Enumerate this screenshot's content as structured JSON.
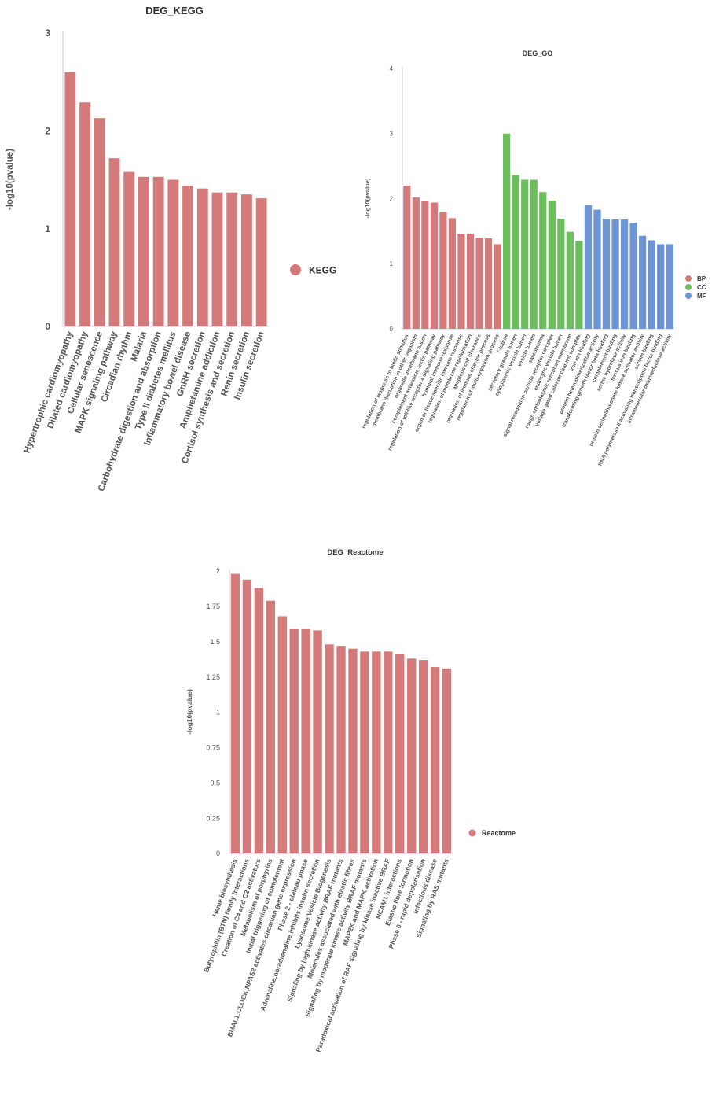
{
  "chart_data": [
    {
      "type": "bar",
      "title": "DEG_KEGG",
      "xlabel": "",
      "ylabel": "-log10(pvalue)",
      "ylim": [
        0,
        3
      ],
      "yticks": [
        "0",
        "1",
        "2",
        "3"
      ],
      "grid": false,
      "legend_position": "right",
      "series": [
        {
          "name": "KEGG",
          "color": "#d47a7a",
          "categories": [
            "Hypertrophic cardiomyopathy",
            "Dilated cardiomyopathy",
            "Cellular senescence",
            "MAPK signaling pathway",
            "Circadian rhythm",
            "Malaria",
            "Carbohydrate digestion and absorption",
            "Type II diabetes mellitus",
            "Inflammatory bowel disease",
            "GnRH secretion",
            "Amphetamine addiction",
            "Cortisol synthesis and secretion",
            "Renin secretion",
            "Insulin secretion"
          ],
          "values": [
            2.6,
            2.29,
            2.13,
            1.72,
            1.58,
            1.53,
            1.53,
            1.5,
            1.44,
            1.41,
            1.37,
            1.37,
            1.35,
            1.31
          ]
        }
      ]
    },
    {
      "type": "bar",
      "title": "DEG_GO",
      "xlabel": "",
      "ylabel": "-log10(pvalue)",
      "ylim": [
        0,
        4
      ],
      "yticks": [
        "0",
        "1",
        "2",
        "3",
        "4"
      ],
      "grid": false,
      "legend_position": "right",
      "series": [
        {
          "name": "BP",
          "color": "#d47a7a",
          "categories": [
            "regulation of response to biotic stimulus",
            "membrane disruption in other organism",
            "organelle membrane fusion",
            "complement activation, lectin pathway",
            "regulation of toll-like receptor 4 signaling pathway",
            "humoral immune response",
            "organ or tissue specific immune response",
            "regulation of membrane repolarization",
            "apoptotic cell clearance",
            "regulation of immune effector process",
            "regulation of multi-organism process"
          ],
          "values": [
            2.2,
            2.02,
            1.96,
            1.94,
            1.79,
            1.7,
            1.46,
            1.46,
            1.4,
            1.39,
            1.3
          ]
        },
        {
          "name": "CC",
          "color": "#6cbd5c",
          "categories": [
            "T-tubule",
            "secretory granule lumen",
            "cytoplasmic vesicle lumen",
            "vesicle lumen",
            "sarcolemma",
            "signal recognition particle receptor complex",
            "endocytic vesicle lumen",
            "rough endoplasmic reticulum membrane",
            "voltage-gated calcium channel complex"
          ],
          "values": [
            3.0,
            2.36,
            2.29,
            2.29,
            2.1,
            1.97,
            1.69,
            1.49,
            1.35
          ]
        },
        {
          "name": "MF",
          "color": "#6e96d6",
          "categories": [
            "iron ion binding",
            "protein heterodimerization activity",
            "transforming growth factor beta binding",
            "complement binding",
            "serine hydrolase activity",
            "ferrous iron binding",
            "protein serine/threonine kinase activator activity",
            "actinin binding",
            "RNA polymerase II activating transcription factor binding",
            "intramolecular oxidoreductase activity"
          ],
          "values": [
            1.9,
            1.83,
            1.69,
            1.68,
            1.68,
            1.63,
            1.43,
            1.36,
            1.3,
            1.3
          ]
        }
      ]
    },
    {
      "type": "bar",
      "title": "DEG_Reactome",
      "xlabel": "",
      "ylabel": "-log10(pvalue)",
      "ylim": [
        0,
        2
      ],
      "yticks": [
        "0",
        "0.25",
        "0.5",
        "0.75",
        "1",
        "1.25",
        "1.5",
        "1.75",
        "2"
      ],
      "grid": false,
      "legend_position": "right",
      "series": [
        {
          "name": "Reactome",
          "color": "#d47a7a",
          "categories": [
            "Heme biosynthesis",
            "Butyrophilin (BTN) family interactions",
            "Creation of C4 and C2 activators",
            "Metabolism of porphyrins",
            "Initial triggering of complement",
            "BMAL1:CLOCK,NPAS2 activates circadian gene expression",
            "Phase 2 - plateau phase",
            "Adrenaline,noradrenaline inhibits insulin secretion",
            "Lysosome Vesicle Biogenesis",
            "Signaling by high-kinase activity BRAF mutants",
            "Molecules associated with elastic fibres",
            "Signaling by moderate kinase activity BRAF mutants",
            "MAP2K and MAPK activation",
            "Paradoxical activation of RAF signaling by kinase inactive BRAF",
            "NCAM1 interactions",
            "Elastic fibre formation",
            "Phase 0 - rapid depolarisation",
            "Infectious disease",
            "Signaling by RAS mutants"
          ],
          "values": [
            1.98,
            1.94,
            1.88,
            1.79,
            1.68,
            1.59,
            1.59,
            1.58,
            1.48,
            1.47,
            1.45,
            1.43,
            1.43,
            1.43,
            1.41,
            1.38,
            1.37,
            1.32,
            1.31
          ]
        }
      ]
    }
  ]
}
